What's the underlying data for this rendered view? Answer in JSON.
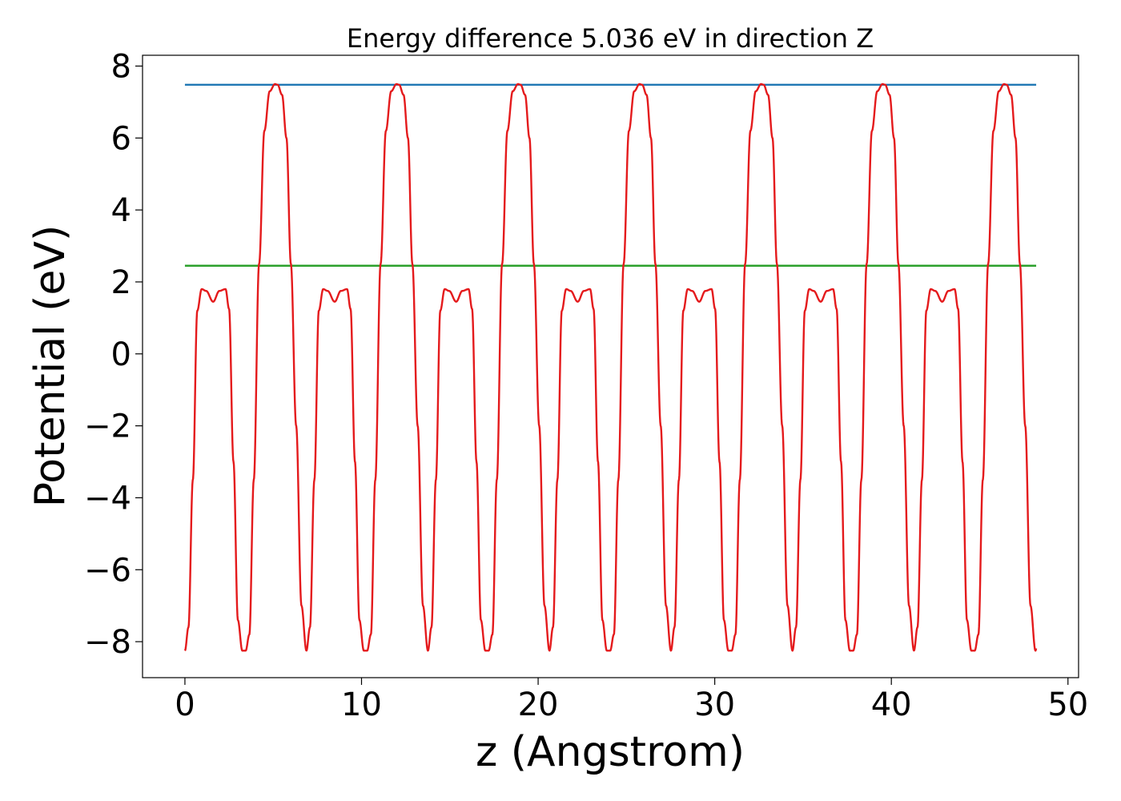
{
  "chart_data": {
    "type": "line",
    "title": "Energy difference 5.036 eV in direction Z",
    "xlabel": "z (Angstrom)",
    "ylabel": "Potential (eV)",
    "xlim": [
      -2.4,
      50.6
    ],
    "ylim": [
      -9.0,
      8.3
    ],
    "xticks": [
      0,
      10,
      20,
      30,
      40,
      50
    ],
    "xtick_labels": [
      "0",
      "10",
      "20",
      "30",
      "40",
      "50"
    ],
    "yticks": [
      -8,
      -6,
      -4,
      -2,
      0,
      2,
      4,
      6,
      8
    ],
    "ytick_labels": [
      "−8",
      "−6",
      "−4",
      "−2",
      "0",
      "2",
      "4",
      "6",
      "8"
    ],
    "grid": false,
    "series": [
      {
        "color": "#1f77b4",
        "x": [
          0,
          48.2
        ],
        "y": [
          7.48,
          7.48
        ]
      },
      {
        "color": "#2ca02c",
        "x": [
          0,
          48.2
        ],
        "y": [
          2.45,
          2.45
        ]
      },
      {
        "color": "#e41a1c",
        "period": 6.88,
        "x_range": [
          0,
          48.2
        ],
        "profile_x": [
          0.0,
          0.2,
          0.45,
          0.7,
          0.95,
          1.2,
          1.6,
          1.95,
          2.3,
          2.5,
          2.75,
          3.0,
          3.25,
          3.44,
          3.65,
          3.9,
          4.2,
          4.5,
          4.8,
          5.1,
          5.25,
          5.5,
          5.75,
          6.0,
          6.3,
          6.6,
          6.88
        ],
        "profile_y": [
          -8.25,
          -7.6,
          -3.5,
          1.2,
          1.8,
          1.75,
          1.45,
          1.75,
          1.8,
          1.25,
          -3.0,
          -7.4,
          -8.25,
          -8.25,
          -7.8,
          -3.5,
          2.5,
          6.2,
          7.3,
          7.5,
          7.48,
          7.2,
          6.0,
          2.5,
          -2.0,
          -7.0,
          -8.25
        ]
      }
    ]
  }
}
